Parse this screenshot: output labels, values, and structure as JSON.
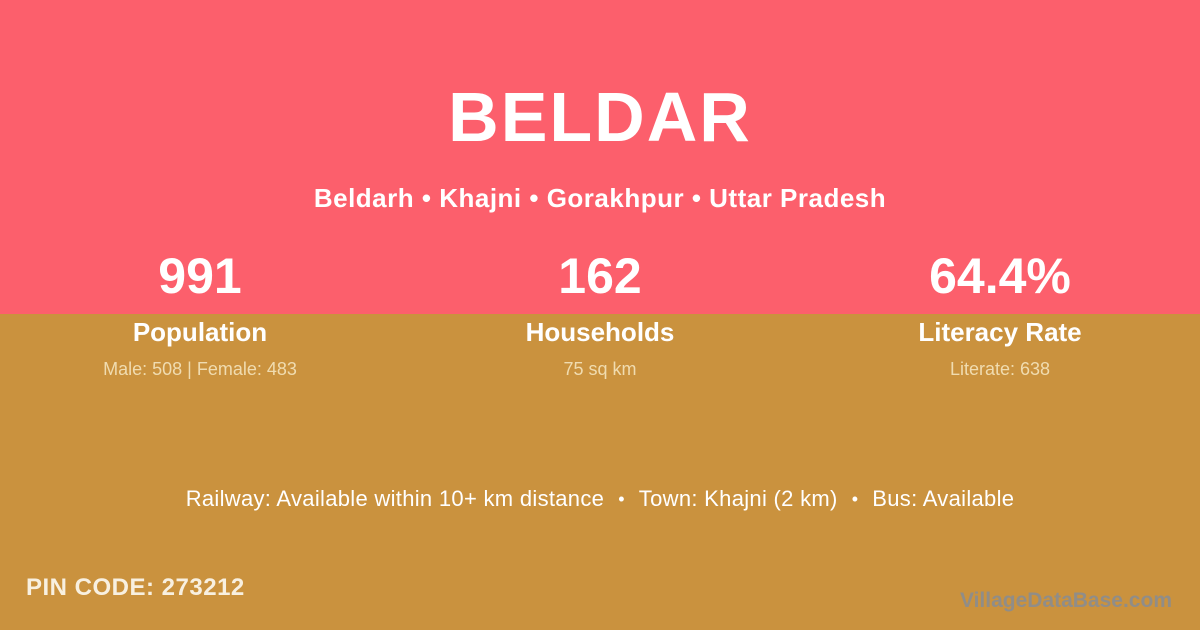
{
  "theme": {
    "hero_pink": "#FC5F6C",
    "body_gold": "#CA923E",
    "text_white": "#FFFFFF",
    "text_cream": "#F0DCB0",
    "watermark_gray": "#8D8D8D"
  },
  "header": {
    "title": "BELDAR",
    "breadcrumb": "Beldarh • Khajni • Gorakhpur • Uttar Pradesh"
  },
  "stats": [
    {
      "value": "991",
      "label": "Population",
      "detail": "Male: 508 | Female: 483"
    },
    {
      "value": "162",
      "label": "Households",
      "detail": "75 sq km"
    },
    {
      "value": "64.4%",
      "label": "Literacy Rate",
      "detail": "Literate: 638"
    }
  ],
  "transport": {
    "separator": "•",
    "items": [
      "Railway: Available within 10+ km distance",
      "Town: Khajni (2 km)",
      "Bus: Available"
    ]
  },
  "footer": {
    "pin_code": "PIN CODE: 273212",
    "watermark": "VillageDataBase.com"
  }
}
